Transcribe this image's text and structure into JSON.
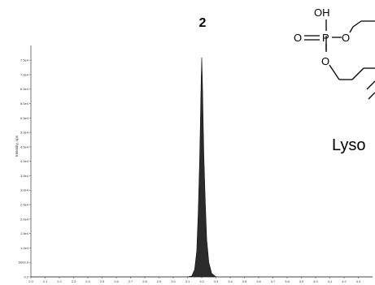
{
  "chart_data": {
    "type": "area",
    "title": "",
    "ylabel": "Intensity, cps",
    "xlabel": "",
    "xlim": [
      2.0,
      4.4
    ],
    "ylim": [
      0,
      79000
    ],
    "y_ticks": [
      0,
      5000,
      10000,
      15000,
      20000,
      25000,
      30000,
      35000,
      40000,
      45000,
      50000,
      55000,
      60000,
      65000,
      70000,
      75000
    ],
    "y_tick_labels": [
      "0.0",
      "5000.0",
      "1.0e4",
      "1.5e4",
      "2.0e4",
      "2.5e4",
      "3.0e4",
      "3.5e4",
      "4.0e4",
      "4.5e4",
      "5.0e4",
      "5.5e4",
      "6.0e4",
      "6.5e4",
      "7.0e4",
      "7.5e4"
    ],
    "x_ticks": [
      2.0,
      2.1,
      2.2,
      2.3,
      2.4,
      2.5,
      2.6,
      2.7,
      2.8,
      2.9,
      3.0,
      3.1,
      3.2,
      3.3,
      3.4,
      3.5,
      3.6,
      3.7,
      3.8,
      3.9,
      4.0,
      4.1,
      4.2,
      4.3
    ],
    "x_tick_labels": [
      "2.0",
      "2.1",
      "2.2",
      "2.3",
      "2.4",
      "2.5",
      "2.6",
      "2.7",
      "2.8",
      "2.9",
      "3.0",
      "3.1",
      "3.2",
      "3.3",
      "3.4",
      "3.5",
      "3.6",
      "3.7",
      "3.8",
      "3.9",
      "4.0",
      "4.1",
      "4.2",
      "4.3"
    ],
    "series": [
      {
        "x": [
          2.0,
          3.1,
          3.13,
          3.15,
          3.165,
          3.175,
          3.185,
          3.19,
          3.195,
          3.2,
          3.205,
          3.21,
          3.215,
          3.225,
          3.235,
          3.25,
          3.27,
          3.3,
          4.4
        ],
        "y": [
          0,
          0,
          300,
          2500,
          9000,
          22000,
          40000,
          52000,
          66000,
          76000,
          67000,
          54000,
          42000,
          26000,
          13000,
          5000,
          1200,
          0,
          0
        ]
      }
    ],
    "annotations": [
      {
        "text": "2",
        "x": 3.2
      }
    ],
    "grid": false,
    "colors": {
      "fill": "#2b2b2b",
      "axis": "#555555"
    }
  },
  "structure": {
    "atoms": {
      "oh": "OH",
      "o_double": "O",
      "p": "P",
      "o_ring": "O",
      "o_bottom": "O"
    },
    "caption": "Lyso"
  }
}
